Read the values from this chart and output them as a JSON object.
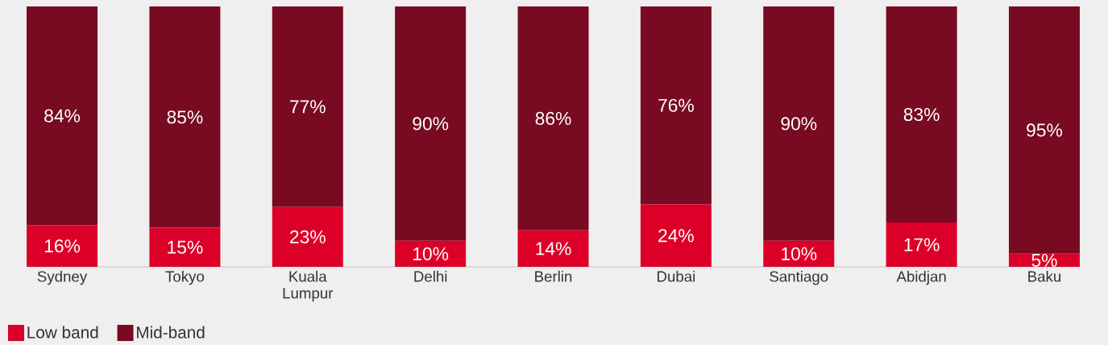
{
  "chart_data": {
    "type": "bar",
    "stacked": true,
    "legend": "bottom left",
    "categories": [
      "Sydney",
      "Tokyo",
      "Kuala Lumpur",
      "Delhi",
      "Berlin",
      "Dubai",
      "Santiago",
      "Abidjan",
      "Baku"
    ],
    "series": [
      {
        "name": "Low band",
        "color": "#dc0028",
        "values": [
          16,
          15,
          23,
          10,
          14,
          24,
          10,
          17,
          5
        ],
        "value_labels": [
          "16%",
          "15%",
          "23%",
          "10%",
          "14%",
          "24%",
          "10%",
          "17%",
          "5%"
        ]
      },
      {
        "name": "Mid-band",
        "color": "#780a22",
        "values": [
          84,
          85,
          77,
          90,
          86,
          76,
          90,
          83,
          95
        ],
        "value_labels": [
          "84%",
          "85%",
          "77%",
          "90%",
          "86%",
          "76%",
          "90%",
          "83%",
          "95%"
        ]
      }
    ]
  }
}
